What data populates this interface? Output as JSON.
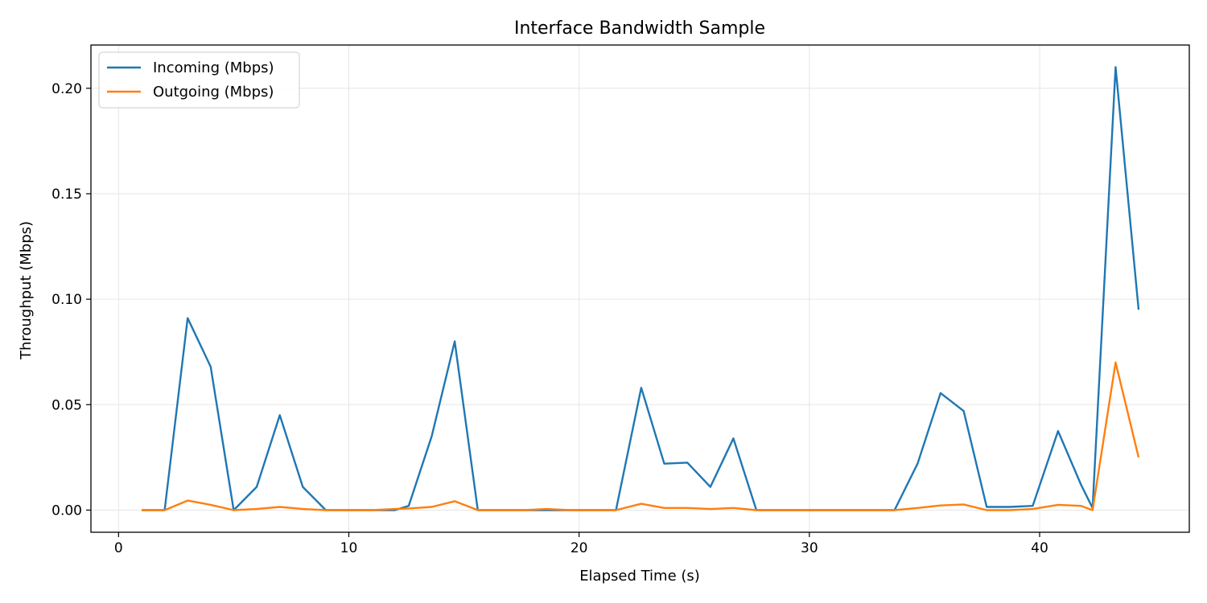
{
  "chart_data": {
    "type": "line",
    "title": "Interface Bandwidth Sample",
    "xlabel": "Elapsed Time (s)",
    "ylabel": "Throughput (Mbps)",
    "xlim": [
      -1.2,
      46.5
    ],
    "ylim": [
      -0.0105,
      0.2205
    ],
    "xticks": [
      0,
      10,
      20,
      30,
      40
    ],
    "yticks": [
      0.0,
      0.05,
      0.1,
      0.15,
      0.2
    ],
    "xtick_labels": [
      "0",
      "10",
      "20",
      "30",
      "40"
    ],
    "ytick_labels": [
      "0.00",
      "0.05",
      "0.10",
      "0.15",
      "0.20"
    ],
    "grid": true,
    "legend_position": "top-left",
    "x": [
      1.0,
      2.0,
      3.0,
      4.0,
      5.0,
      6.0,
      7.0,
      8.0,
      9.0,
      10.0,
      11.0,
      12.0,
      12.6,
      13.6,
      14.6,
      15.6,
      16.6,
      17.6,
      18.6,
      19.6,
      20.6,
      21.6,
      22.7,
      23.7,
      24.7,
      25.7,
      26.7,
      27.7,
      28.7,
      29.7,
      30.7,
      31.7,
      32.7,
      33.7,
      34.7,
      35.7,
      36.7,
      37.7,
      38.7,
      39.7,
      40.8,
      41.8,
      42.3,
      43.3,
      44.3
    ],
    "series": [
      {
        "name": "Incoming (Mbps)",
        "color": "#1f77b4",
        "values": [
          0.0,
          0.0,
          0.091,
          0.068,
          0.0,
          0.011,
          0.045,
          0.011,
          0.0,
          0.0,
          0.0,
          0.0,
          0.002,
          0.035,
          0.08,
          0.0,
          0.0,
          0.0,
          0.0,
          0.0,
          0.0,
          0.0,
          0.058,
          0.022,
          0.0225,
          0.011,
          0.034,
          0.0,
          0.0,
          0.0,
          0.0,
          0.0,
          0.0,
          0.0,
          0.022,
          0.0555,
          0.047,
          0.0015,
          0.0015,
          0.002,
          0.0375,
          0.012,
          0.001,
          0.21,
          0.095
        ]
      },
      {
        "name": "Outgoing (Mbps)",
        "color": "#ff7f0e",
        "values": [
          0.0,
          0.0,
          0.0045,
          0.0025,
          0.0,
          0.0005,
          0.0015,
          0.0005,
          0.0,
          0.0,
          0.0,
          0.0005,
          0.0008,
          0.0015,
          0.0042,
          0.0,
          0.0,
          0.0,
          0.0005,
          0.0,
          0.0,
          0.0,
          0.003,
          0.001,
          0.001,
          0.0005,
          0.001,
          0.0,
          0.0,
          0.0,
          0.0,
          0.0,
          0.0,
          0.0,
          0.001,
          0.0022,
          0.0027,
          0.0,
          0.0,
          0.0005,
          0.0025,
          0.002,
          0.0,
          0.07,
          0.025
        ]
      }
    ]
  }
}
